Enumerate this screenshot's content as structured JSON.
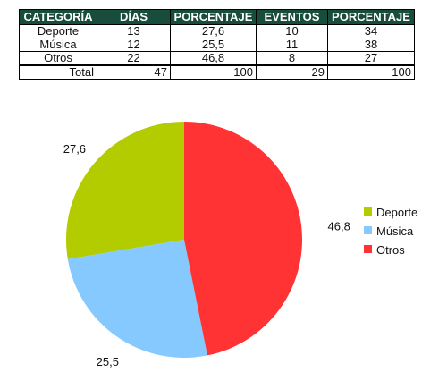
{
  "table": {
    "headers": [
      "CATEGORÍA",
      "DÍAS",
      "PORCENTAJE",
      "EVENTOS",
      "PORCENTAJE"
    ],
    "rows": [
      [
        "Deporte",
        "13",
        "27,6",
        "10",
        "34"
      ],
      [
        "Música",
        "12",
        "25,5",
        "11",
        "38"
      ],
      [
        "Otros",
        "22",
        "46,8",
        "8",
        "27"
      ]
    ],
    "total": [
      "Total",
      "47",
      "100",
      "29",
      "100"
    ]
  },
  "chart_data": {
    "type": "pie",
    "categories": [
      "Deporte",
      "Música",
      "Otros"
    ],
    "values": [
      27.6,
      25.5,
      46.8
    ],
    "labels": [
      "27,6",
      "25,5",
      "46,8"
    ],
    "colors": [
      "#b2cc00",
      "#86c9ff",
      "#ff3333"
    ],
    "legend_position": "right",
    "start_angle": "12 o'clock",
    "direction": "counterclockwise"
  }
}
